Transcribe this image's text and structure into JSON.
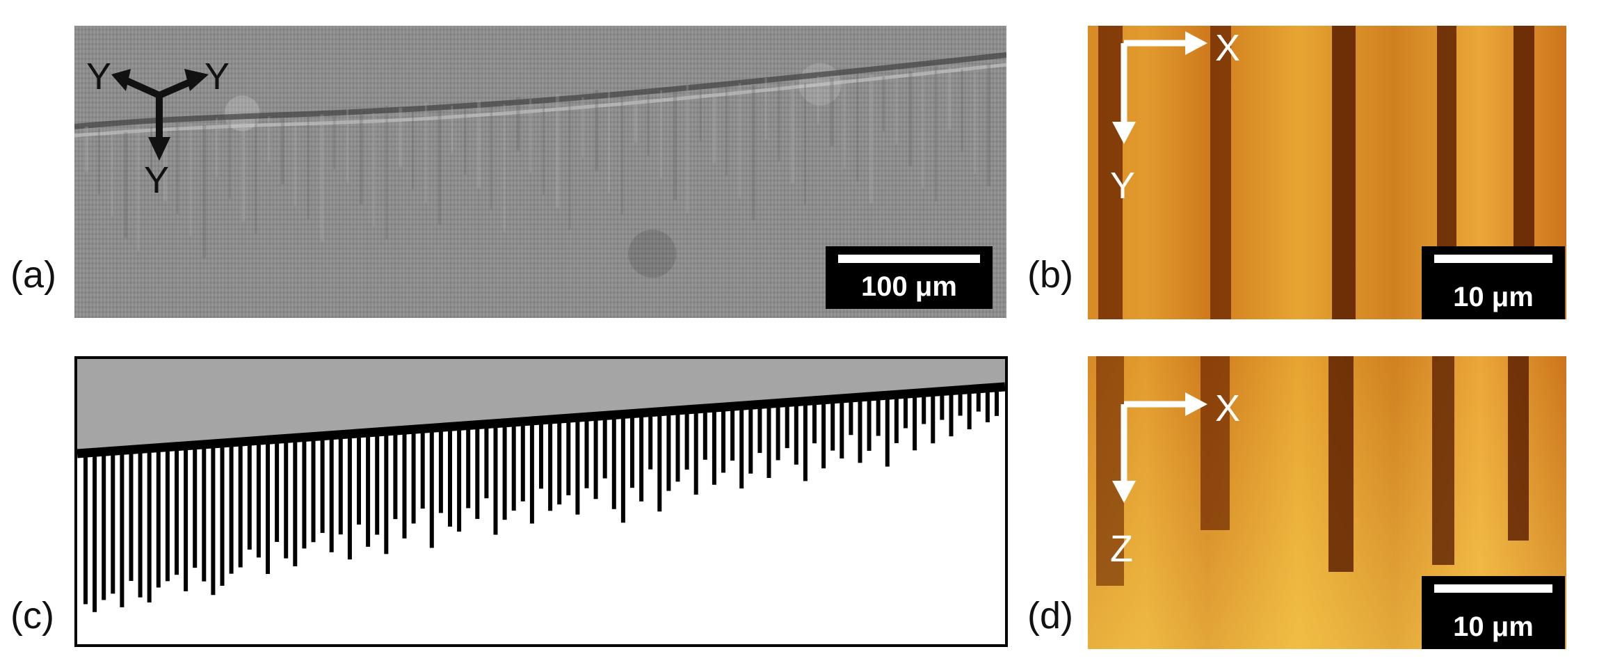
{
  "labels": {
    "a": "(a)",
    "b": "(b)",
    "c": "(c)",
    "d": "(d)"
  },
  "panel_a": {
    "axes": [
      "Y",
      "Y",
      "Y"
    ],
    "scale_label": "100 μm"
  },
  "panel_b": {
    "axis_x": "X",
    "axis_y": "Y",
    "scale_label": "10 μm"
  },
  "panel_d": {
    "axis_x": "X",
    "axis_z": "Z",
    "scale_label": "10 μm"
  },
  "colors": {
    "microscope_gray": "#8d8d8d",
    "heatmap_orange": "#d88a24",
    "heatmap_dark": "#5a1d00",
    "schematic_gray": "#a5a5a5"
  },
  "panel_c": {
    "needle_depths": [
      0.53,
      0.56,
      0.52,
      0.5,
      0.55,
      0.46,
      0.52,
      0.54,
      0.49,
      0.47,
      0.45,
      0.51,
      0.43,
      0.48,
      0.53,
      0.5,
      0.46,
      0.44,
      0.38,
      0.41,
      0.47,
      0.36,
      0.42,
      0.45,
      0.39,
      0.37,
      0.34,
      0.41,
      0.35,
      0.44,
      0.32,
      0.4,
      0.36,
      0.43,
      0.31,
      0.38,
      0.33,
      0.28,
      0.42,
      0.3,
      0.35,
      0.37,
      0.29,
      0.33,
      0.26,
      0.39,
      0.34,
      0.31,
      0.28,
      0.36,
      0.24,
      0.32,
      0.3,
      0.27,
      0.34,
      0.25,
      0.29,
      0.22,
      0.33,
      0.38,
      0.26,
      0.31,
      0.2,
      0.35,
      0.28,
      0.25,
      0.21,
      0.3,
      0.18,
      0.27,
      0.23,
      0.19,
      0.29,
      0.24,
      0.17,
      0.26,
      0.2,
      0.16,
      0.22,
      0.28,
      0.15,
      0.24,
      0.18,
      0.21,
      0.13,
      0.23,
      0.19,
      0.14,
      0.25,
      0.17,
      0.12,
      0.2,
      0.11,
      0.18,
      0.1,
      0.16,
      0.09,
      0.14,
      0.08,
      0.12,
      0.1
    ]
  }
}
